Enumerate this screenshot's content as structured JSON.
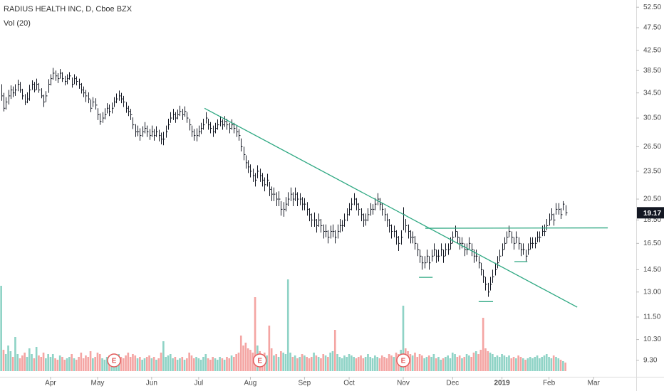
{
  "chart_data": {
    "type": "ohlc",
    "title": "RADIUS HEALTH INC, D, Cboe BZX",
    "subtitle": "Vol (20)",
    "bar_color": "#131722",
    "volume_colors": {
      "up": "#8fd3c6",
      "down": "#f4a5a3"
    },
    "log_y": true,
    "ylim": [
      8.58,
      54.4
    ],
    "yticks": [
      {
        "value": 52.5,
        "label": "52.50"
      },
      {
        "value": 47.5,
        "label": "47.50"
      },
      {
        "value": 42.5,
        "label": "42.50"
      },
      {
        "value": 38.5,
        "label": "38.50"
      },
      {
        "value": 34.5,
        "label": "34.50"
      },
      {
        "value": 30.5,
        "label": "30.50"
      },
      {
        "value": 26.5,
        "label": "26.50"
      },
      {
        "value": 23.5,
        "label": "23.50"
      },
      {
        "value": 20.5,
        "label": "20.50"
      },
      {
        "value": 18.5,
        "label": "18.50"
      },
      {
        "value": 16.5,
        "label": "16.50"
      },
      {
        "value": 14.5,
        "label": "14.50"
      },
      {
        "value": 13,
        "label": "13.00"
      },
      {
        "value": 11.5,
        "label": "11.50"
      },
      {
        "value": 10.3,
        "label": "10.30"
      },
      {
        "value": 9.3,
        "label": "9.30"
      }
    ],
    "xlim": [
      -0.5,
      270.1
    ],
    "xticks": [
      {
        "value": 21,
        "label": "Apr"
      },
      {
        "value": 41,
        "label": "May"
      },
      {
        "value": 64,
        "label": "Jun"
      },
      {
        "value": 84,
        "label": "Jul"
      },
      {
        "value": 106,
        "label": "Aug"
      },
      {
        "value": 129,
        "label": "Sep"
      },
      {
        "value": 148,
        "label": "Oct"
      },
      {
        "value": 171,
        "label": "Nov"
      },
      {
        "value": 192,
        "label": "Dec"
      },
      {
        "value": 213,
        "label": "2019",
        "bold": true
      },
      {
        "value": 233,
        "label": "Feb"
      },
      {
        "value": 252,
        "label": "Mar"
      }
    ],
    "last_price": 19.17,
    "bars": [
      [
        36,
        33.2,
        34
      ],
      [
        34.5,
        31.5,
        32
      ],
      [
        33.8,
        31.8,
        33
      ],
      [
        35,
        32.6,
        34
      ],
      [
        35.8,
        33.5,
        35
      ],
      [
        35.6,
        33.8,
        34.5
      ],
      [
        36,
        34,
        35
      ],
      [
        36.8,
        34.8,
        36
      ],
      [
        36.4,
        34.5,
        35
      ],
      [
        35.2,
        33.4,
        34
      ],
      [
        34.3,
        32.5,
        33
      ],
      [
        34.6,
        32.8,
        33.5
      ],
      [
        35.9,
        33.2,
        35
      ],
      [
        36.7,
        35,
        36
      ],
      [
        36.4,
        34.6,
        35
      ],
      [
        37,
        35,
        36
      ],
      [
        36.2,
        34.5,
        35
      ],
      [
        35.3,
        33.6,
        34
      ],
      [
        34.2,
        32.2,
        33
      ],
      [
        34.8,
        33,
        34
      ],
      [
        36.9,
        34.5,
        36
      ],
      [
        37.8,
        35.8,
        37
      ],
      [
        39,
        36.8,
        38
      ],
      [
        38.5,
        36.6,
        37.5
      ],
      [
        38,
        36.2,
        37
      ],
      [
        38.8,
        37,
        38
      ],
      [
        38.2,
        36.4,
        37
      ],
      [
        37.5,
        35.8,
        36.5
      ],
      [
        37.8,
        36,
        37
      ],
      [
        38.2,
        36.8,
        37.5
      ],
      [
        37.2,
        35.4,
        36
      ],
      [
        37.8,
        36,
        37
      ],
      [
        37.4,
        35.8,
        36.5
      ],
      [
        37,
        35.2,
        36
      ],
      [
        36.2,
        34.4,
        35
      ],
      [
        35.6,
        33.8,
        34.5
      ],
      [
        35,
        33,
        34
      ],
      [
        34.6,
        32.8,
        33.5
      ],
      [
        33.4,
        31.4,
        32
      ],
      [
        33.8,
        32.2,
        33
      ],
      [
        33.6,
        31.8,
        32.5
      ],
      [
        32,
        30.2,
        31
      ],
      [
        31.2,
        29.5,
        30
      ],
      [
        31.4,
        29.8,
        30.5
      ],
      [
        32,
        30.3,
        31
      ],
      [
        32.8,
        31.2,
        32
      ],
      [
        32.6,
        30.8,
        31.5
      ],
      [
        32.9,
        31.2,
        32
      ],
      [
        33.8,
        32.2,
        33
      ],
      [
        34.4,
        32.8,
        33.5
      ],
      [
        34.9,
        33.2,
        34
      ],
      [
        34.5,
        32.8,
        33.5
      ],
      [
        34,
        32.2,
        33
      ],
      [
        33,
        31.3,
        32
      ],
      [
        32.4,
        30.8,
        31.5
      ],
      [
        31.9,
        30.2,
        31
      ],
      [
        30.6,
        28.9,
        29.5
      ],
      [
        29.6,
        27.8,
        28.5
      ],
      [
        29.4,
        27.9,
        28.5
      ],
      [
        29,
        27.3,
        28
      ],
      [
        29.3,
        27.8,
        28.5
      ],
      [
        29.9,
        28.3,
        29
      ],
      [
        29.4,
        27.8,
        28.5
      ],
      [
        28.9,
        27.4,
        28
      ],
      [
        29.4,
        27.8,
        28.5
      ],
      [
        28.9,
        27.3,
        28
      ],
      [
        29.3,
        27.8,
        28.5
      ],
      [
        28.8,
        27.2,
        28
      ],
      [
        28.4,
        26.8,
        27.5
      ],
      [
        28.5,
        26.7,
        27.5
      ],
      [
        29.4,
        27.7,
        28.5
      ],
      [
        30.4,
        28.8,
        29.5
      ],
      [
        31.4,
        29.8,
        30.5
      ],
      [
        31.9,
        30.2,
        31
      ],
      [
        31.4,
        29.8,
        30.5
      ],
      [
        31.8,
        30.3,
        31
      ],
      [
        32.4,
        30.8,
        31.5
      ],
      [
        31.9,
        30.2,
        31
      ],
      [
        32.3,
        30.7,
        31.5
      ],
      [
        31.4,
        29.8,
        30.5
      ],
      [
        30.4,
        28.7,
        29.5
      ],
      [
        29.4,
        27.8,
        28.5
      ],
      [
        28.9,
        27.3,
        28
      ],
      [
        29,
        27.2,
        28
      ],
      [
        29.4,
        27.8,
        28.5
      ],
      [
        29.8,
        28.2,
        29
      ],
      [
        30.4,
        28.8,
        29.5
      ],
      [
        31.4,
        29.7,
        30.5
      ],
      [
        30.4,
        28.8,
        29.5
      ],
      [
        29.9,
        28.3,
        29
      ],
      [
        29.4,
        27.8,
        28.5
      ],
      [
        29.8,
        28.3,
        29
      ],
      [
        30.3,
        28.8,
        29.5
      ],
      [
        30.8,
        29.3,
        30
      ],
      [
        30.3,
        28.8,
        29.5
      ],
      [
        30.8,
        29.2,
        30
      ],
      [
        30.4,
        28.8,
        29.5
      ],
      [
        29.8,
        28.3,
        29
      ],
      [
        30.3,
        28.8,
        29.5
      ],
      [
        29.8,
        28.3,
        29
      ],
      [
        29.4,
        27.8,
        28.5
      ],
      [
        28.9,
        27.3,
        28
      ],
      [
        27.6,
        25.9,
        26.5
      ],
      [
        26.5,
        24.8,
        25.5
      ],
      [
        25.4,
        23.8,
        24.5
      ],
      [
        24.8,
        23.3,
        24
      ],
      [
        24.3,
        22.8,
        23.5
      ],
      [
        23.8,
        22.3,
        23
      ],
      [
        23.3,
        21.8,
        22.5
      ],
      [
        24.2,
        22.7,
        23.5
      ],
      [
        23.8,
        22.3,
        23
      ],
      [
        23.3,
        21.8,
        22.5
      ],
      [
        22.8,
        21.3,
        22
      ],
      [
        23.2,
        21.8,
        22.5
      ],
      [
        22.3,
        20.8,
        21.5
      ],
      [
        21.8,
        20.3,
        21
      ],
      [
        21.7,
        20.3,
        21
      ],
      [
        21.2,
        19.8,
        20.5
      ],
      [
        21.3,
        19.8,
        20.5
      ],
      [
        20.3,
        18.9,
        19.5
      ],
      [
        20.2,
        18.8,
        19.5
      ],
      [
        20.7,
        19.3,
        20
      ],
      [
        21.2,
        19.8,
        20.5
      ],
      [
        21.7,
        20.3,
        21
      ],
      [
        21.2,
        19.8,
        20.5
      ],
      [
        21.7,
        20.3,
        21
      ],
      [
        21.2,
        19.8,
        20.5
      ],
      [
        21.1,
        19.9,
        20.5
      ],
      [
        20.7,
        19.4,
        20
      ],
      [
        20.6,
        19.4,
        20
      ],
      [
        20.2,
        18.9,
        19.5
      ],
      [
        19.6,
        18.4,
        19
      ],
      [
        19.1,
        17.9,
        18.5
      ],
      [
        19.2,
        17.9,
        18.5
      ],
      [
        18.6,
        17.4,
        18
      ],
      [
        19.1,
        17.9,
        18.5
      ],
      [
        18.6,
        17.4,
        18
      ],
      [
        18.1,
        16.9,
        17.5
      ],
      [
        18.1,
        17,
        17.5
      ],
      [
        17.6,
        16.5,
        17
      ],
      [
        18,
        16.9,
        17.5
      ],
      [
        18.1,
        17,
        17.5
      ],
      [
        17.6,
        16.5,
        17
      ],
      [
        18.1,
        16.9,
        17.5
      ],
      [
        18.6,
        17.4,
        18
      ],
      [
        18.5,
        17.5,
        18
      ],
      [
        19.1,
        17.9,
        18.5
      ],
      [
        19.6,
        18.4,
        19
      ],
      [
        20.1,
        18.9,
        19.5
      ],
      [
        20.6,
        19.4,
        20
      ],
      [
        21.1,
        19.9,
        20.5
      ],
      [
        20.6,
        19.4,
        20
      ],
      [
        20.1,
        18.9,
        19.5
      ],
      [
        19.6,
        18.4,
        19
      ],
      [
        19.1,
        17.9,
        18.5
      ],
      [
        19.1,
        18,
        18.5
      ],
      [
        19.6,
        18.4,
        19
      ],
      [
        20.1,
        18.9,
        19.5
      ],
      [
        20,
        19,
        19.5
      ],
      [
        20.6,
        19.4,
        20
      ],
      [
        21.1,
        19.9,
        20.5
      ],
      [
        20.6,
        19.4,
        20
      ],
      [
        20.1,
        18.9,
        19.5
      ],
      [
        19.6,
        18.4,
        19
      ],
      [
        19.1,
        17.9,
        18.5
      ],
      [
        18.6,
        17.4,
        18
      ],
      [
        18.1,
        16.9,
        17.5
      ],
      [
        18,
        17,
        17.5
      ],
      [
        17.6,
        16.4,
        17
      ],
      [
        17.1,
        15.9,
        16.5
      ],
      [
        17.6,
        16.4,
        17
      ],
      [
        19.7,
        17.6,
        19
      ],
      [
        18.6,
        17.4,
        18
      ],
      [
        18.1,
        16.9,
        17.5
      ],
      [
        17.6,
        16.5,
        17
      ],
      [
        17.5,
        16.5,
        17
      ],
      [
        17.1,
        16,
        16.5
      ],
      [
        16.5,
        15.5,
        16
      ],
      [
        16,
        15,
        15.5
      ],
      [
        15.5,
        14.5,
        15
      ],
      [
        15.5,
        14.6,
        15
      ],
      [
        16,
        15,
        15.5
      ],
      [
        15.5,
        14.5,
        15
      ],
      [
        16,
        15.1,
        15.5
      ],
      [
        16.5,
        15.5,
        16
      ],
      [
        16,
        15,
        15.5
      ],
      [
        16,
        15.1,
        15.5
      ],
      [
        16.5,
        15.5,
        16
      ],
      [
        16,
        15,
        15.5
      ],
      [
        16.5,
        15.5,
        16
      ],
      [
        16.5,
        15.6,
        16
      ],
      [
        17,
        16,
        16.5
      ],
      [
        17.5,
        16.5,
        17
      ],
      [
        18,
        17,
        17.5
      ],
      [
        17.5,
        16.5,
        17
      ],
      [
        17,
        16,
        16.5
      ],
      [
        17,
        16.1,
        16.5
      ],
      [
        16.5,
        15.5,
        16
      ],
      [
        16.5,
        15.6,
        16
      ],
      [
        17,
        16,
        16.5
      ],
      [
        16.5,
        15.5,
        16
      ],
      [
        16,
        15,
        15.5
      ],
      [
        16,
        15.1,
        15.5
      ],
      [
        15.5,
        14.6,
        15
      ],
      [
        15,
        14.1,
        14.5
      ],
      [
        14.5,
        13.6,
        14
      ],
      [
        14,
        13.1,
        13.5
      ],
      [
        13.6,
        12.7,
        13
      ],
      [
        14,
        13.1,
        13.5
      ],
      [
        14.5,
        13.6,
        14
      ],
      [
        15,
        14.1,
        14.5
      ],
      [
        15.5,
        14.6,
        15
      ],
      [
        16,
        15.1,
        15.5
      ],
      [
        16.5,
        15.5,
        16
      ],
      [
        17,
        16,
        16.5
      ],
      [
        17.5,
        16.5,
        17
      ],
      [
        18,
        17,
        17.5
      ],
      [
        17.5,
        16.5,
        17
      ],
      [
        17,
        16,
        16.5
      ],
      [
        17.5,
        16.5,
        17
      ],
      [
        17,
        16,
        16.5
      ],
      [
        16.5,
        15.5,
        16
      ],
      [
        16.5,
        15.6,
        16
      ],
      [
        16,
        15.1,
        15.5
      ],
      [
        16.5,
        15.6,
        16
      ],
      [
        17,
        16,
        16.5
      ],
      [
        17,
        16.1,
        16.5
      ],
      [
        17,
        16.1,
        16.5
      ],
      [
        17.5,
        16.6,
        17
      ],
      [
        17.5,
        16.6,
        17
      ],
      [
        18,
        17.1,
        17.5
      ],
      [
        18.1,
        17.1,
        17.5
      ],
      [
        18.6,
        17.6,
        18
      ],
      [
        19.1,
        18,
        18.5
      ],
      [
        19.6,
        18.5,
        19
      ],
      [
        19.1,
        18,
        18.5
      ],
      [
        20.1,
        19,
        19.5
      ],
      [
        20.1,
        19,
        19.5
      ],
      [
        19.6,
        18.6,
        19
      ],
      [
        20.3,
        19.4,
        20
      ],
      [
        19.9,
        18.9,
        19.17
      ]
    ],
    "vlim": [
      0,
      7000
    ],
    "volume": [
      6000,
      1500,
      1200,
      1800,
      1400,
      1000,
      2400,
      1200,
      900,
      1100,
      1300,
      1000,
      1600,
      1200,
      900,
      1700,
      1100,
      1000,
      1300,
      900,
      1200,
      1000,
      1200,
      900,
      800,
      1100,
      1000,
      800,
      900,
      1000,
      1200,
      900,
      800,
      1000,
      1300,
      900,
      1100,
      1000,
      1400,
      900,
      1000,
      1300,
      1200,
      900,
      800,
      1000,
      1100,
      900,
      1000,
      900,
      1200,
      1000,
      900,
      1100,
      1300,
      1000,
      1200,
      1100,
      900,
      1000,
      800,
      900,
      1000,
      1100,
      900,
      1000,
      800,
      900,
      1300,
      2100,
      1000,
      1100,
      1200,
      900,
      1000,
      800,
      900,
      1000,
      800,
      900,
      1300,
      1100,
      900,
      1000,
      900,
      800,
      1000,
      1200,
      900,
      800,
      1000,
      900,
      800,
      1000,
      900,
      800,
      1000,
      900,
      1100,
      1000,
      1200,
      1300,
      2500,
      1800,
      2000,
      1600,
      1500,
      1300,
      5200,
      1800,
      1400,
      1200,
      1300,
      1100,
      3200,
      1600,
      1100,
      1200,
      1000,
      1400,
      1300,
      1200,
      6450,
      1300,
      1000,
      1100,
      900,
      1000,
      1200,
      1100,
      1000,
      900,
      1000,
      1300,
      1100,
      1000,
      900,
      1200,
      1100,
      1000,
      1300,
      1400,
      2900,
      1200,
      1000,
      900,
      1100,
      1000,
      1200,
      1100,
      1000,
      900,
      1000,
      1100,
      900,
      1000,
      1200,
      1000,
      900,
      1100,
      1000,
      900,
      1100,
      1000,
      900,
      1200,
      1100,
      1000,
      1300,
      1200,
      1500,
      4600,
      1600,
      1400,
      1200,
      1100,
      1300,
      1000,
      1200,
      1100,
      900,
      1000,
      1100,
      1000,
      1200,
      900,
      1000,
      800,
      900,
      1000,
      1100,
      900,
      1300,
      1200,
      1000,
      1100,
      900,
      1000,
      1200,
      1100,
      1000,
      1300,
      1400,
      1200,
      1500,
      3750,
      1600,
      1400,
      1300,
      1200,
      1000,
      1100,
      1000,
      1200,
      1100,
      1000,
      1100,
      900,
      1000,
      900,
      1100,
      1000,
      900,
      800,
      900,
      1000,
      900,
      1000,
      1100,
      900,
      1000,
      1100,
      1200,
      1000,
      900,
      1100,
      1000,
      900,
      800,
      700,
      600
    ],
    "earnings": [
      {
        "x": 48,
        "label": "E"
      },
      {
        "x": 110,
        "label": "E"
      },
      {
        "x": 171,
        "label": "E"
      }
    ],
    "earnings_color": "#e25b5b",
    "drawing_color": "#2ea882",
    "drawings": [
      {
        "points": [
          [
            86.5,
            32.0
          ],
          [
            245,
            12.07
          ]
        ]
      },
      {
        "points": [
          [
            180.4,
            17.77
          ],
          [
            258,
            17.8
          ]
        ]
      },
      {
        "points": [
          [
            177.7,
            13.97
          ],
          [
            183.5,
            13.97
          ]
        ]
      },
      {
        "points": [
          [
            203.1,
            12.4
          ],
          [
            209.2,
            12.4
          ]
        ]
      },
      {
        "points": [
          [
            218.3,
            15.09
          ],
          [
            223.8,
            15.09
          ]
        ]
      }
    ]
  }
}
